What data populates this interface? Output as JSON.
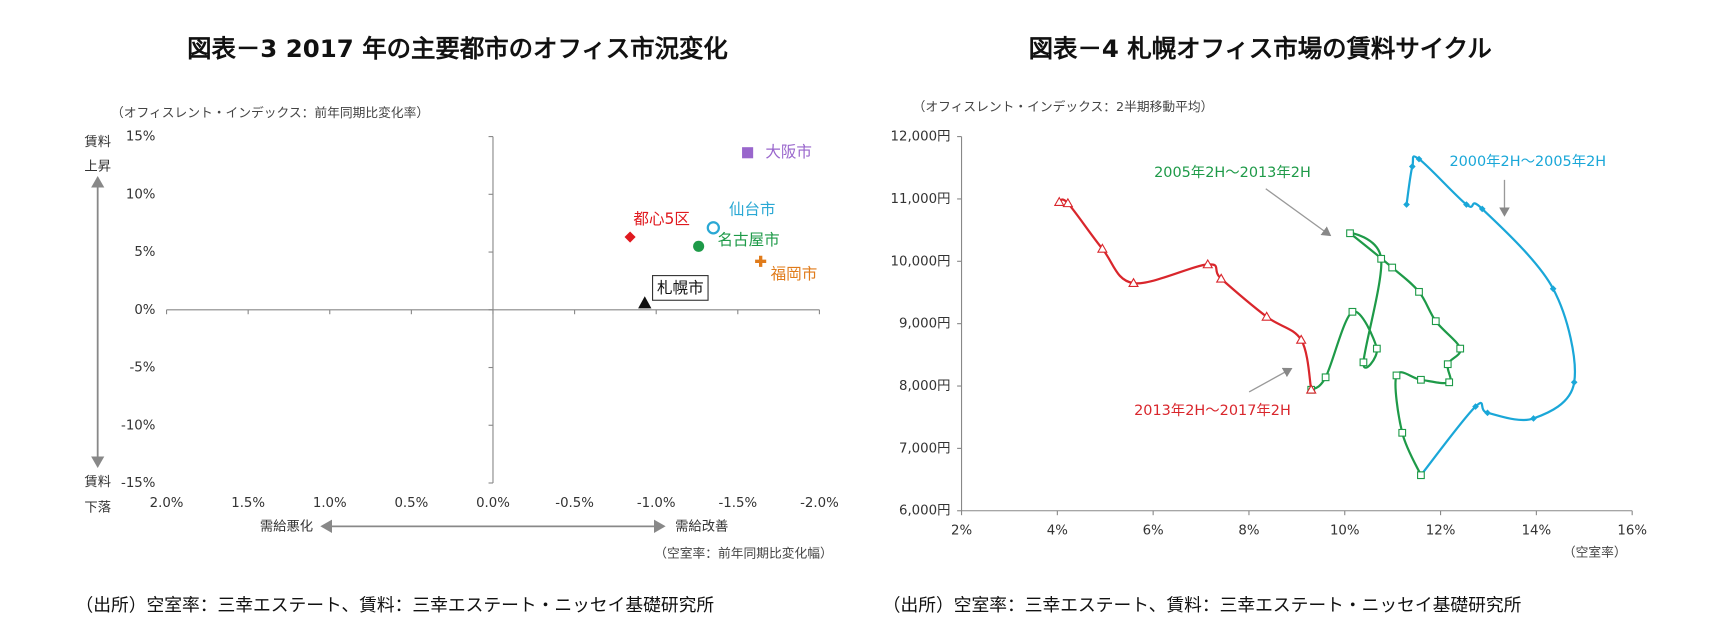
{
  "chart_data": [
    {
      "type": "scatter",
      "title": "図表－3  2017 年の主要都市のオフィス市況変化",
      "y_label": "（オフィスレント・インデックス：前年同期比変化率）",
      "x_label": "（空室率：前年同期比変化幅）",
      "annotations": [
        "賃料",
        "上昇",
        "賃料",
        "下落",
        "需給悪化",
        "需給改善"
      ],
      "source": "（出所）空室率：三幸エステート、賃料：三幸エステート・ニッセイ基礎研究所",
      "xlim": [
        2.0,
        -2.0
      ],
      "xticks": [
        {
          "value": 2.0,
          "label": "2.0%"
        },
        {
          "value": 1.5,
          "label": "1.5%"
        },
        {
          "value": 1.0,
          "label": "1.0%"
        },
        {
          "value": 0.5,
          "label": "0.5%"
        },
        {
          "value": 0.0,
          "label": "0.0%"
        },
        {
          "value": -0.5,
          "label": "-0.5%"
        },
        {
          "value": -1.0,
          "label": "-1.0%"
        },
        {
          "value": -1.5,
          "label": "-1.5%"
        },
        {
          "value": -2.0,
          "label": "-2.0%"
        }
      ],
      "ylim": [
        -15,
        15
      ],
      "yticks": [
        {
          "value": 15,
          "label": "15%"
        },
        {
          "value": 10,
          "label": "10%"
        },
        {
          "value": 5,
          "label": "5%"
        },
        {
          "value": 0,
          "label": "0%"
        },
        {
          "value": -5,
          "label": "-5%"
        },
        {
          "value": -10,
          "label": "-10%"
        },
        {
          "value": -15,
          "label": "-15%"
        }
      ],
      "grid": false,
      "series": [
        {
          "name": "大阪市",
          "color": "#9966cc",
          "marker": "square",
          "x": [
            -1.56
          ],
          "values": [
            13.6
          ]
        },
        {
          "name": "都心5区",
          "color": "#e0191f",
          "marker": "diamond",
          "x": [
            -0.84
          ],
          "values": [
            6.3
          ]
        },
        {
          "name": "仙台市",
          "color": "#2aa8d4",
          "marker": "open-circle",
          "x": [
            -1.35
          ],
          "values": [
            7.1
          ]
        },
        {
          "name": "名古屋市",
          "color": "#1e9a48",
          "marker": "circle",
          "x": [
            -1.26
          ],
          "values": [
            5.5
          ]
        },
        {
          "name": "福岡市",
          "color": "#e07b1a",
          "marker": "plus",
          "x": [
            -1.64
          ],
          "values": [
            4.2
          ]
        },
        {
          "name": "札幌市",
          "color": "#111111",
          "marker": "triangle",
          "x": [
            -0.93
          ],
          "values": [
            0.6
          ]
        }
      ]
    },
    {
      "type": "line",
      "title": "図表－4  札幌オフィス市場の賃料サイクル",
      "y_label": "（オフィスレント・インデックス：2半期移動平均）",
      "x_label": "（空室率）",
      "source": "（出所）空室率：三幸エステート、賃料：三幸エステート・ニッセイ基礎研究所",
      "xlim": [
        2,
        16
      ],
      "xticks": [
        {
          "value": 2,
          "label": "2%"
        },
        {
          "value": 4,
          "label": "4%"
        },
        {
          "value": 6,
          "label": "6%"
        },
        {
          "value": 8,
          "label": "8%"
        },
        {
          "value": 10,
          "label": "10%"
        },
        {
          "value": 12,
          "label": "12%"
        },
        {
          "value": 14,
          "label": "14%"
        },
        {
          "value": 16,
          "label": "16%"
        }
      ],
      "ylim": [
        6000,
        12000
      ],
      "yticks": [
        {
          "value": 6000,
          "label": "6,000円"
        },
        {
          "value": 7000,
          "label": "7,000円"
        },
        {
          "value": 8000,
          "label": "8,000円"
        },
        {
          "value": 9000,
          "label": "9,000円"
        },
        {
          "value": 10000,
          "label": "10,000円"
        },
        {
          "value": 11000,
          "label": "11,000円"
        },
        {
          "value": 12000,
          "label": "12,000円"
        }
      ],
      "grid": false,
      "series": [
        {
          "name": "2000年2H～2005年2H",
          "color": "#1aa7d8",
          "marker": "star",
          "x": [
            11.29,
            11.41,
            11.55,
            12.54,
            12.87,
            14.35,
            14.79,
            13.94,
            12.98,
            12.73,
            11.59
          ],
          "values": [
            10910,
            11520,
            11640,
            10910,
            10840,
            9560,
            8060,
            7480,
            7570,
            7670,
            6570
          ]
        },
        {
          "name": "2005年2H～2013年2H",
          "color": "#1e9a48",
          "marker": "open-square",
          "x": [
            11.59,
            11.2,
            11.08,
            11.59,
            12.18,
            12.15,
            12.41,
            11.9,
            11.55,
            10.99,
            10.11,
            10.76,
            10.39,
            10.67,
            10.16,
            9.6,
            9.3
          ],
          "values": [
            6570,
            7250,
            8170,
            8100,
            8060,
            8350,
            8600,
            9040,
            9510,
            9900,
            10450,
            10040,
            8380,
            8600,
            9190,
            8140,
            7940
          ]
        },
        {
          "name": "2013年2H～2017年2H",
          "color": "#d9262c",
          "marker": "open-triangle",
          "x": [
            9.3,
            9.09,
            8.37,
            7.42,
            7.14,
            5.59,
            4.94,
            4.22,
            4.04
          ],
          "values": [
            7940,
            8740,
            9110,
            9720,
            9950,
            9650,
            10200,
            10930,
            10950
          ]
        }
      ]
    }
  ]
}
